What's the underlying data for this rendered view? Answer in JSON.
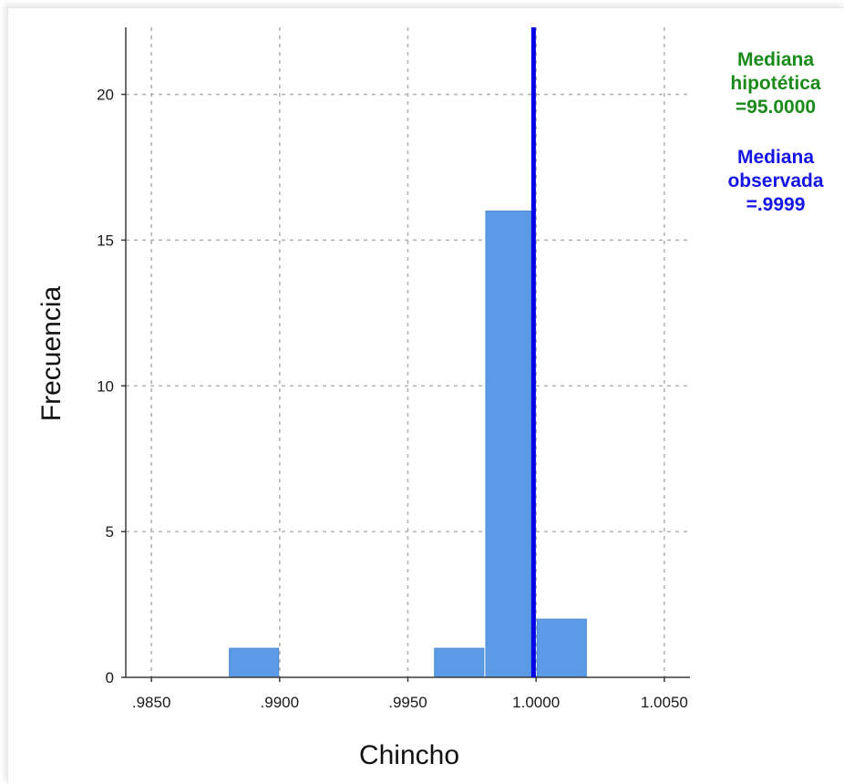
{
  "chart_data": {
    "type": "bar",
    "xlabel": "Chincho",
    "ylabel": "Frecuencia",
    "xlim": [
      0.984,
      1.006
    ],
    "ylim": [
      0,
      22.3
    ],
    "x_ticks": [
      0.985,
      0.99,
      0.995,
      1.0,
      1.005
    ],
    "x_tick_labels": [
      ".9850",
      ".9900",
      ".9950",
      "1.0000",
      "1.0050"
    ],
    "y_ticks": [
      0,
      5,
      10,
      15,
      20
    ],
    "y_tick_labels": [
      "0",
      "5",
      "10",
      "15",
      "20"
    ],
    "grid": true,
    "bins": [
      {
        "start": 0.988,
        "end": 0.99,
        "count": 1
      },
      {
        "start": 0.996,
        "end": 0.998,
        "count": 1
      },
      {
        "start": 0.998,
        "end": 1.0,
        "count": 16
      },
      {
        "start": 1.0,
        "end": 1.002,
        "count": 2
      }
    ],
    "bar_color": "#5b9be6",
    "observed_median": 0.9999,
    "observed_median_color": "#0000e6",
    "annotations": {
      "hypothetical": {
        "lines": [
          "Mediana",
          "hipotética",
          "=95.0000"
        ],
        "color": "#1a8a1a"
      },
      "observed": {
        "lines": [
          "Mediana",
          "observada",
          "=.9999"
        ],
        "color": "#1414e6"
      }
    }
  }
}
